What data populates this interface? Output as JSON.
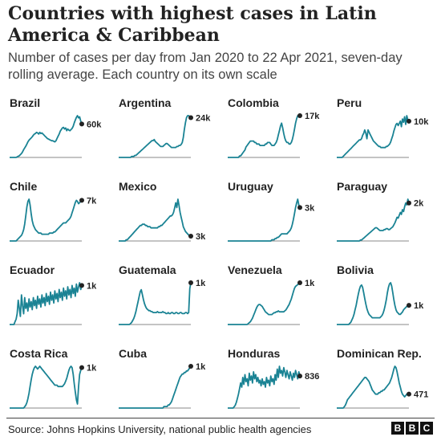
{
  "title": "Countries with highest cases in Latin America & Caribbean",
  "subtitle": "Number of cases per day from Jan 2020 to 22 Apr 2021, seven-day rolling average. Each country on its own scale",
  "source": "Source: Johns Hopkins University, national public health agencies",
  "logo": [
    "B",
    "B",
    "C"
  ],
  "colors": {
    "line": "#1a8394",
    "dot": "#222222",
    "axis": "#888888",
    "text": "#222222"
  },
  "chart_data": [
    {
      "type": "line",
      "title": "Brazil",
      "end_label": "60k",
      "values": [
        0,
        0,
        0,
        0,
        0,
        0,
        0,
        1,
        2,
        3,
        5,
        7,
        10,
        14,
        17,
        20,
        24,
        28,
        31,
        33,
        35,
        37,
        40,
        42,
        43,
        45,
        44,
        42,
        45,
        43,
        44,
        42,
        40,
        38,
        36,
        34,
        33,
        32,
        31,
        30,
        30,
        29,
        28,
        30,
        34,
        38,
        42,
        47,
        50,
        53,
        54,
        51,
        53,
        48,
        51,
        49,
        48,
        50,
        52,
        56,
        62,
        67,
        72,
        75,
        71,
        73,
        65,
        60
      ]
    },
    {
      "type": "line",
      "title": "Argentina",
      "end_label": "24k",
      "values": [
        0,
        0,
        0,
        0,
        0,
        0,
        0,
        0,
        0,
        0,
        0,
        0,
        1,
        1,
        1,
        2,
        2,
        3,
        4,
        5,
        6,
        7,
        8,
        9,
        10,
        11,
        12,
        13,
        14,
        15,
        16,
        17,
        17,
        18,
        16,
        15,
        14,
        13,
        12,
        11,
        11,
        11,
        12,
        13,
        14,
        14,
        13,
        12,
        11,
        10,
        10,
        10,
        10,
        10,
        11,
        11,
        12,
        12,
        13,
        15,
        20,
        28,
        35,
        40,
        42,
        42,
        41,
        40
      ]
    },
    {
      "type": "line",
      "title": "Colombia",
      "end_label": "17k",
      "values": [
        0,
        0,
        0,
        0,
        0,
        0,
        0,
        0,
        0,
        0,
        0,
        1,
        1,
        2,
        3,
        4,
        5,
        7,
        8,
        9,
        10,
        11,
        11,
        11,
        11,
        10,
        10,
        9,
        9,
        9,
        8,
        8,
        8,
        8,
        8,
        9,
        9,
        10,
        10,
        10,
        9,
        8,
        8,
        8,
        9,
        10,
        12,
        15,
        18,
        21,
        23,
        20,
        16,
        13,
        11,
        10,
        10,
        9,
        9,
        10,
        12,
        15,
        19,
        23,
        26,
        28,
        28,
        28
      ]
    },
    {
      "type": "line",
      "title": "Peru",
      "end_label": "10k",
      "values": [
        0,
        0,
        0,
        0,
        0,
        0,
        1,
        2,
        3,
        4,
        5,
        6,
        7,
        8,
        9,
        10,
        11,
        12,
        13,
        14,
        15,
        16,
        16,
        17,
        20,
        22,
        25,
        22,
        17,
        25,
        23,
        21,
        19,
        17,
        15,
        14,
        13,
        12,
        11,
        10,
        10,
        9,
        9,
        9,
        9,
        9,
        10,
        10,
        11,
        12,
        14,
        17,
        20,
        24,
        27,
        30,
        31,
        29,
        31,
        33,
        28,
        35,
        32,
        37,
        30,
        38,
        34,
        33
      ]
    },
    {
      "type": "line",
      "title": "Chile",
      "end_label": "7k",
      "values": [
        0,
        0,
        0,
        0,
        0,
        0,
        0,
        1,
        2,
        3,
        4,
        5,
        7,
        10,
        15,
        22,
        30,
        35,
        37,
        32,
        24,
        18,
        14,
        12,
        10,
        9,
        8,
        7,
        7,
        7,
        6,
        6,
        6,
        6,
        6,
        6,
        6,
        7,
        7,
        7,
        7,
        8,
        8,
        9,
        10,
        11,
        12,
        13,
        14,
        15,
        16,
        16,
        16,
        17,
        18,
        19,
        20,
        22,
        25,
        28,
        31,
        34,
        36,
        35,
        33,
        34,
        35,
        36
      ]
    },
    {
      "type": "line",
      "title": "Mexico",
      "end_label": "3k",
      "values": [
        0,
        0,
        0,
        0,
        0,
        0,
        0,
        1,
        1,
        2,
        3,
        4,
        5,
        6,
        7,
        8,
        9,
        10,
        11,
        12,
        13,
        13,
        14,
        14,
        14,
        13,
        13,
        12,
        12,
        12,
        11,
        11,
        11,
        11,
        11,
        11,
        11,
        12,
        12,
        13,
        13,
        14,
        15,
        16,
        17,
        18,
        19,
        20,
        21,
        21,
        22,
        24,
        28,
        32,
        28,
        35,
        30,
        24,
        20,
        16,
        12,
        10,
        8,
        7,
        6,
        5,
        5,
        4
      ]
    },
    {
      "type": "line",
      "title": "Uruguay",
      "end_label": "3k",
      "values": [
        0,
        0,
        0,
        0,
        0,
        0,
        0,
        0,
        0,
        0,
        0,
        0,
        0,
        0,
        0,
        0,
        0,
        0,
        0,
        0,
        0,
        0,
        0,
        0,
        0,
        0,
        0,
        0,
        0,
        0,
        0,
        0,
        0,
        0,
        0,
        0,
        0,
        0,
        0,
        0,
        0,
        1,
        1,
        1,
        2,
        2,
        3,
        3,
        4,
        5,
        6,
        6,
        6,
        6,
        6,
        6,
        7,
        8,
        9,
        11,
        14,
        18,
        23,
        28,
        32,
        35,
        30,
        28
      ]
    },
    {
      "type": "line",
      "title": "Paraguay",
      "end_label": "2k",
      "values": [
        0,
        0,
        0,
        0,
        0,
        0,
        0,
        0,
        0,
        0,
        0,
        0,
        0,
        0,
        0,
        0,
        0,
        0,
        0,
        0,
        0,
        0,
        1,
        1,
        2,
        3,
        4,
        5,
        6,
        7,
        8,
        9,
        10,
        11,
        12,
        13,
        14,
        14,
        13,
        12,
        11,
        11,
        11,
        11,
        12,
        12,
        13,
        13,
        12,
        12,
        13,
        14,
        15,
        17,
        19,
        22,
        25,
        24,
        27,
        30,
        28,
        33,
        31,
        36,
        40,
        38,
        44,
        40
      ]
    },
    {
      "type": "line",
      "title": "Ecuador",
      "end_label": "1k",
      "values": [
        0,
        0,
        0,
        0,
        0,
        2,
        4,
        8,
        18,
        12,
        6,
        22,
        14,
        8,
        20,
        12,
        16,
        10,
        19,
        13,
        17,
        11,
        20,
        14,
        18,
        12,
        21,
        15,
        19,
        13,
        22,
        16,
        20,
        14,
        23,
        17,
        21,
        15,
        24,
        18,
        22,
        16,
        25,
        19,
        23,
        17,
        26,
        20,
        24,
        18,
        27,
        21,
        25,
        19,
        28,
        22,
        26,
        20,
        29,
        23,
        27,
        21,
        30,
        24,
        28,
        31,
        26,
        29
      ]
    },
    {
      "type": "line",
      "title": "Guatemala",
      "end_label": "1k",
      "values": [
        0,
        0,
        0,
        0,
        0,
        0,
        0,
        0,
        0,
        0,
        0,
        1,
        2,
        4,
        6,
        9,
        13,
        18,
        23,
        28,
        33,
        35,
        30,
        25,
        21,
        18,
        16,
        15,
        14,
        14,
        13,
        13,
        12,
        12,
        12,
        12,
        13,
        12,
        12,
        12,
        12,
        13,
        12,
        12,
        11,
        11,
        12,
        11,
        11,
        12,
        12,
        11,
        11,
        12,
        12,
        11,
        11,
        12,
        12,
        11,
        11,
        11,
        12,
        12,
        11,
        12,
        36,
        42
      ]
    },
    {
      "type": "line",
      "title": "Venezuela",
      "end_label": "1k",
      "values": [
        0,
        0,
        0,
        0,
        0,
        0,
        0,
        0,
        0,
        0,
        0,
        0,
        0,
        0,
        0,
        0,
        0,
        0,
        0,
        1,
        2,
        3,
        5,
        7,
        10,
        13,
        16,
        19,
        21,
        22,
        22,
        21,
        20,
        18,
        16,
        14,
        13,
        12,
        11,
        11,
        11,
        11,
        12,
        13,
        13,
        14,
        14,
        15,
        14,
        14,
        14,
        14,
        14,
        15,
        16,
        18,
        20,
        22,
        25,
        28,
        32,
        36,
        40,
        42,
        43,
        44,
        45,
        46
      ]
    },
    {
      "type": "line",
      "title": "Bolivia",
      "end_label": "1k",
      "values": [
        0,
        0,
        0,
        0,
        0,
        0,
        0,
        0,
        0,
        0,
        0,
        0,
        1,
        2,
        4,
        6,
        9,
        13,
        17,
        22,
        27,
        31,
        34,
        35,
        33,
        28,
        23,
        18,
        14,
        11,
        9,
        8,
        7,
        6,
        6,
        6,
        6,
        6,
        6,
        6,
        6,
        7,
        8,
        10,
        13,
        17,
        22,
        28,
        33,
        36,
        37,
        34,
        28,
        22,
        17,
        13,
        11,
        10,
        9,
        9,
        10,
        11,
        13,
        14,
        15,
        16,
        17,
        17
      ]
    },
    {
      "type": "line",
      "title": "Costa Rica",
      "end_label": "1k",
      "values": [
        0,
        0,
        0,
        0,
        0,
        0,
        0,
        0,
        0,
        0,
        0,
        0,
        0,
        0,
        1,
        2,
        4,
        7,
        11,
        16,
        21,
        25,
        28,
        30,
        31,
        30,
        29,
        30,
        31,
        30,
        29,
        28,
        27,
        26,
        25,
        24,
        23,
        22,
        21,
        20,
        19,
        18,
        17,
        17,
        17,
        16,
        16,
        16,
        16,
        16,
        17,
        18,
        20,
        22,
        25,
        28,
        30,
        31,
        30,
        25,
        18,
        12,
        6,
        3,
        16,
        25,
        28,
        30
      ]
    },
    {
      "type": "line",
      "title": "Cuba",
      "end_label": "1k",
      "values": [
        0,
        0,
        0,
        0,
        0,
        0,
        0,
        0,
        0,
        0,
        0,
        0,
        0,
        0,
        0,
        0,
        0,
        0,
        0,
        0,
        0,
        0,
        0,
        0,
        0,
        0,
        0,
        0,
        0,
        0,
        0,
        0,
        0,
        0,
        0,
        0,
        0,
        0,
        0,
        0,
        0,
        0,
        1,
        1,
        1,
        1,
        2,
        2,
        3,
        4,
        6,
        8,
        10,
        12,
        14,
        16,
        18,
        20,
        21,
        22,
        22,
        23,
        23,
        24,
        24,
        25,
        26,
        27
      ]
    },
    {
      "type": "line",
      "title": "Honduras",
      "end_label": "836",
      "values": [
        0,
        0,
        0,
        0,
        0,
        0,
        1,
        2,
        4,
        7,
        10,
        14,
        18,
        15,
        22,
        17,
        24,
        19,
        21,
        16,
        25,
        20,
        23,
        18,
        26,
        21,
        24,
        19,
        22,
        18,
        20,
        16,
        21,
        17,
        19,
        15,
        22,
        18,
        20,
        16,
        23,
        19,
        21,
        17,
        24,
        20,
        28,
        22,
        30,
        25,
        27,
        23,
        29,
        26,
        22,
        27,
        24,
        21,
        26,
        23,
        20,
        25,
        22,
        27,
        24,
        21,
        26,
        23
      ]
    },
    {
      "type": "line",
      "title": "Dominican Rep.",
      "end_label": "471",
      "values": [
        0,
        0,
        0,
        0,
        0,
        0,
        0,
        1,
        2,
        4,
        6,
        7,
        8,
        9,
        10,
        11,
        12,
        13,
        14,
        15,
        16,
        17,
        18,
        19,
        20,
        21,
        22,
        22,
        21,
        20,
        19,
        17,
        15,
        13,
        12,
        11,
        10,
        10,
        10,
        11,
        11,
        12,
        12,
        13,
        13,
        14,
        15,
        16,
        17,
        18,
        20,
        22,
        25,
        28,
        30,
        29,
        26,
        22,
        18,
        15,
        12,
        10,
        9,
        8,
        9,
        10,
        10,
        10
      ]
    }
  ]
}
